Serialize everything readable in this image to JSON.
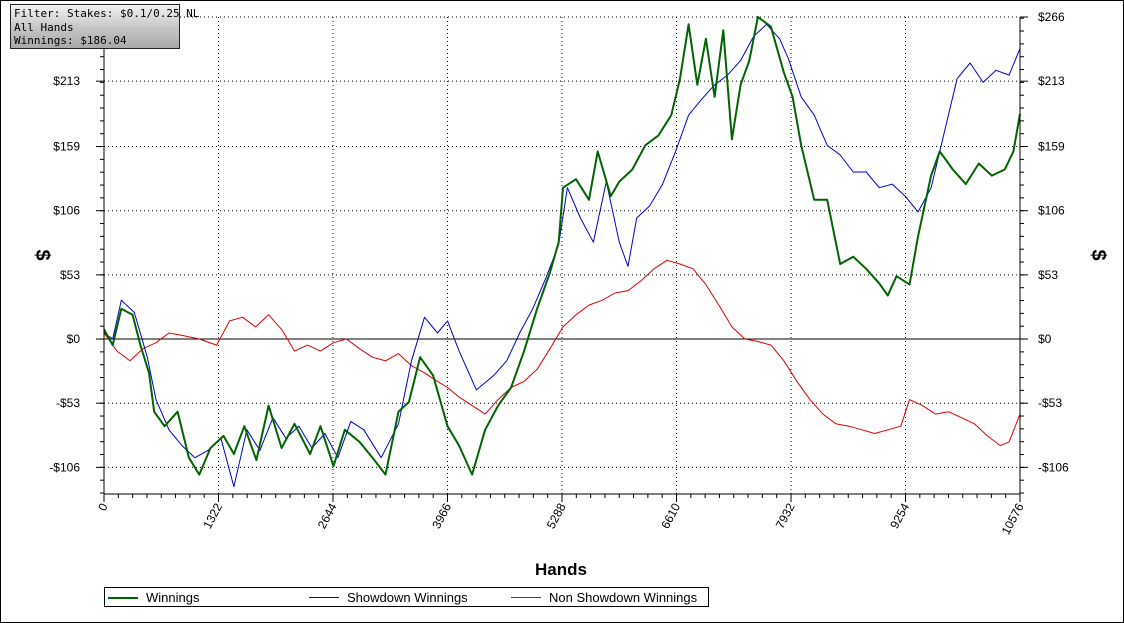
{
  "filter_box": {
    "line1": "Filter: Stakes: $0.1/0.25 NL",
    "line2": "All Hands",
    "line3": "Winnings: $186.04"
  },
  "chart_data": {
    "type": "line",
    "xlabel": "Hands",
    "ylabel": "$",
    "x_ticks": [
      0,
      1322,
      2644,
      3966,
      5288,
      6610,
      7932,
      9254,
      10576
    ],
    "y_ticks": [
      -106,
      -53,
      0,
      53,
      106,
      159,
      213,
      266
    ],
    "y_tick_labels": [
      "-$106",
      "-$53",
      "$0",
      "$53",
      "$106",
      "$159",
      "$213",
      "$266"
    ],
    "xlim": [
      0,
      10576
    ],
    "ylim": [
      -128,
      266
    ],
    "grid": true,
    "legend_position": "bottom-left",
    "series": [
      {
        "name": "Winnings",
        "color": "#006400",
        "points": [
          [
            0,
            8
          ],
          [
            100,
            -5
          ],
          [
            200,
            25
          ],
          [
            330,
            20
          ],
          [
            420,
            -5
          ],
          [
            520,
            -28
          ],
          [
            580,
            -60
          ],
          [
            700,
            -72
          ],
          [
            850,
            -60
          ],
          [
            980,
            -98
          ],
          [
            1100,
            -112
          ],
          [
            1230,
            -90
          ],
          [
            1380,
            -80
          ],
          [
            1500,
            -95
          ],
          [
            1620,
            -72
          ],
          [
            1760,
            -100
          ],
          [
            1900,
            -55
          ],
          [
            2050,
            -90
          ],
          [
            2200,
            -70
          ],
          [
            2380,
            -95
          ],
          [
            2500,
            -72
          ],
          [
            2650,
            -105
          ],
          [
            2780,
            -75
          ],
          [
            2950,
            -85
          ],
          [
            3100,
            -98
          ],
          [
            3250,
            -112
          ],
          [
            3400,
            -60
          ],
          [
            3520,
            -52
          ],
          [
            3650,
            -15
          ],
          [
            3800,
            -30
          ],
          [
            3966,
            -72
          ],
          [
            4100,
            -88
          ],
          [
            4250,
            -112
          ],
          [
            4400,
            -75
          ],
          [
            4550,
            -55
          ],
          [
            4700,
            -40
          ],
          [
            4850,
            -10
          ],
          [
            5000,
            25
          ],
          [
            5150,
            55
          ],
          [
            5250,
            80
          ],
          [
            5300,
            125
          ],
          [
            5450,
            132
          ],
          [
            5600,
            115
          ],
          [
            5700,
            155
          ],
          [
            5850,
            118
          ],
          [
            5950,
            130
          ],
          [
            6100,
            140
          ],
          [
            6250,
            160
          ],
          [
            6400,
            168
          ],
          [
            6550,
            185
          ],
          [
            6650,
            215
          ],
          [
            6750,
            260
          ],
          [
            6850,
            210
          ],
          [
            6950,
            248
          ],
          [
            7050,
            200
          ],
          [
            7150,
            255
          ],
          [
            7250,
            165
          ],
          [
            7350,
            210
          ],
          [
            7450,
            230
          ],
          [
            7550,
            266
          ],
          [
            7700,
            258
          ],
          [
            7850,
            220
          ],
          [
            7950,
            200
          ],
          [
            8050,
            160
          ],
          [
            8200,
            115
          ],
          [
            8350,
            115
          ],
          [
            8500,
            62
          ],
          [
            8650,
            68
          ],
          [
            8800,
            58
          ],
          [
            8950,
            46
          ],
          [
            9050,
            36
          ],
          [
            9150,
            52
          ],
          [
            9300,
            45
          ],
          [
            9400,
            85
          ],
          [
            9550,
            135
          ],
          [
            9650,
            155
          ],
          [
            9800,
            140
          ],
          [
            9950,
            128
          ],
          [
            10100,
            145
          ],
          [
            10250,
            135
          ],
          [
            10400,
            140
          ],
          [
            10500,
            155
          ],
          [
            10576,
            186
          ]
        ]
      },
      {
        "name": "Showdown Winnings",
        "color": "#0000cd",
        "points": [
          [
            0,
            5
          ],
          [
            100,
            0
          ],
          [
            200,
            32
          ],
          [
            350,
            22
          ],
          [
            500,
            -15
          ],
          [
            600,
            -50
          ],
          [
            750,
            -75
          ],
          [
            900,
            -88
          ],
          [
            1050,
            -98
          ],
          [
            1200,
            -92
          ],
          [
            1350,
            -82
          ],
          [
            1500,
            -122
          ],
          [
            1650,
            -75
          ],
          [
            1800,
            -92
          ],
          [
            1950,
            -65
          ],
          [
            2100,
            -82
          ],
          [
            2250,
            -72
          ],
          [
            2400,
            -90
          ],
          [
            2550,
            -78
          ],
          [
            2700,
            -98
          ],
          [
            2850,
            -68
          ],
          [
            3000,
            -75
          ],
          [
            3200,
            -98
          ],
          [
            3400,
            -70
          ],
          [
            3550,
            -18
          ],
          [
            3700,
            18
          ],
          [
            3850,
            5
          ],
          [
            3966,
            15
          ],
          [
            4100,
            -10
          ],
          [
            4300,
            -42
          ],
          [
            4500,
            -30
          ],
          [
            4650,
            -18
          ],
          [
            4800,
            5
          ],
          [
            4950,
            25
          ],
          [
            5100,
            50
          ],
          [
            5250,
            78
          ],
          [
            5350,
            125
          ],
          [
            5500,
            100
          ],
          [
            5650,
            80
          ],
          [
            5800,
            130
          ],
          [
            5950,
            80
          ],
          [
            6050,
            60
          ],
          [
            6150,
            100
          ],
          [
            6300,
            110
          ],
          [
            6450,
            128
          ],
          [
            6600,
            155
          ],
          [
            6750,
            185
          ],
          [
            6900,
            198
          ],
          [
            7050,
            210
          ],
          [
            7200,
            218
          ],
          [
            7350,
            230
          ],
          [
            7500,
            250
          ],
          [
            7650,
            260
          ],
          [
            7800,
            248
          ],
          [
            7900,
            232
          ],
          [
            8050,
            200
          ],
          [
            8200,
            185
          ],
          [
            8350,
            160
          ],
          [
            8500,
            152
          ],
          [
            8650,
            138
          ],
          [
            8800,
            138
          ],
          [
            8950,
            125
          ],
          [
            9100,
            128
          ],
          [
            9250,
            118
          ],
          [
            9400,
            105
          ],
          [
            9550,
            125
          ],
          [
            9700,
            170
          ],
          [
            9850,
            215
          ],
          [
            10000,
            228
          ],
          [
            10150,
            212
          ],
          [
            10300,
            222
          ],
          [
            10450,
            218
          ],
          [
            10576,
            240
          ]
        ]
      },
      {
        "name": "Non Showdown Winnings",
        "color": "#dd0000",
        "points": [
          [
            0,
            5
          ],
          [
            150,
            -10
          ],
          [
            300,
            -18
          ],
          [
            450,
            -8
          ],
          [
            600,
            -3
          ],
          [
            750,
            5
          ],
          [
            900,
            3
          ],
          [
            1100,
            0
          ],
          [
            1300,
            -5
          ],
          [
            1450,
            15
          ],
          [
            1600,
            18
          ],
          [
            1750,
            10
          ],
          [
            1900,
            20
          ],
          [
            2050,
            8
          ],
          [
            2200,
            -10
          ],
          [
            2350,
            -5
          ],
          [
            2500,
            -10
          ],
          [
            2650,
            -3
          ],
          [
            2800,
            0
          ],
          [
            2950,
            -8
          ],
          [
            3100,
            -15
          ],
          [
            3250,
            -18
          ],
          [
            3400,
            -12
          ],
          [
            3550,
            -22
          ],
          [
            3700,
            -28
          ],
          [
            3850,
            -35
          ],
          [
            3966,
            -40
          ],
          [
            4100,
            -48
          ],
          [
            4250,
            -55
          ],
          [
            4400,
            -62
          ],
          [
            4550,
            -50
          ],
          [
            4700,
            -40
          ],
          [
            4850,
            -35
          ],
          [
            5000,
            -25
          ],
          [
            5150,
            -8
          ],
          [
            5300,
            10
          ],
          [
            5450,
            20
          ],
          [
            5600,
            28
          ],
          [
            5750,
            32
          ],
          [
            5900,
            38
          ],
          [
            6050,
            40
          ],
          [
            6200,
            48
          ],
          [
            6350,
            58
          ],
          [
            6500,
            65
          ],
          [
            6650,
            62
          ],
          [
            6800,
            58
          ],
          [
            6950,
            45
          ],
          [
            7100,
            28
          ],
          [
            7250,
            10
          ],
          [
            7400,
            0
          ],
          [
            7550,
            -2
          ],
          [
            7700,
            -5
          ],
          [
            7850,
            -18
          ],
          [
            8000,
            -35
          ],
          [
            8150,
            -50
          ],
          [
            8300,
            -62
          ],
          [
            8450,
            -70
          ],
          [
            8600,
            -72
          ],
          [
            8750,
            -75
          ],
          [
            8900,
            -78
          ],
          [
            9050,
            -75
          ],
          [
            9200,
            -72
          ],
          [
            9300,
            -50
          ],
          [
            9450,
            -55
          ],
          [
            9600,
            -62
          ],
          [
            9750,
            -60
          ],
          [
            9900,
            -65
          ],
          [
            10050,
            -70
          ],
          [
            10200,
            -80
          ],
          [
            10350,
            -88
          ],
          [
            10450,
            -85
          ],
          [
            10576,
            -62
          ]
        ]
      }
    ]
  }
}
